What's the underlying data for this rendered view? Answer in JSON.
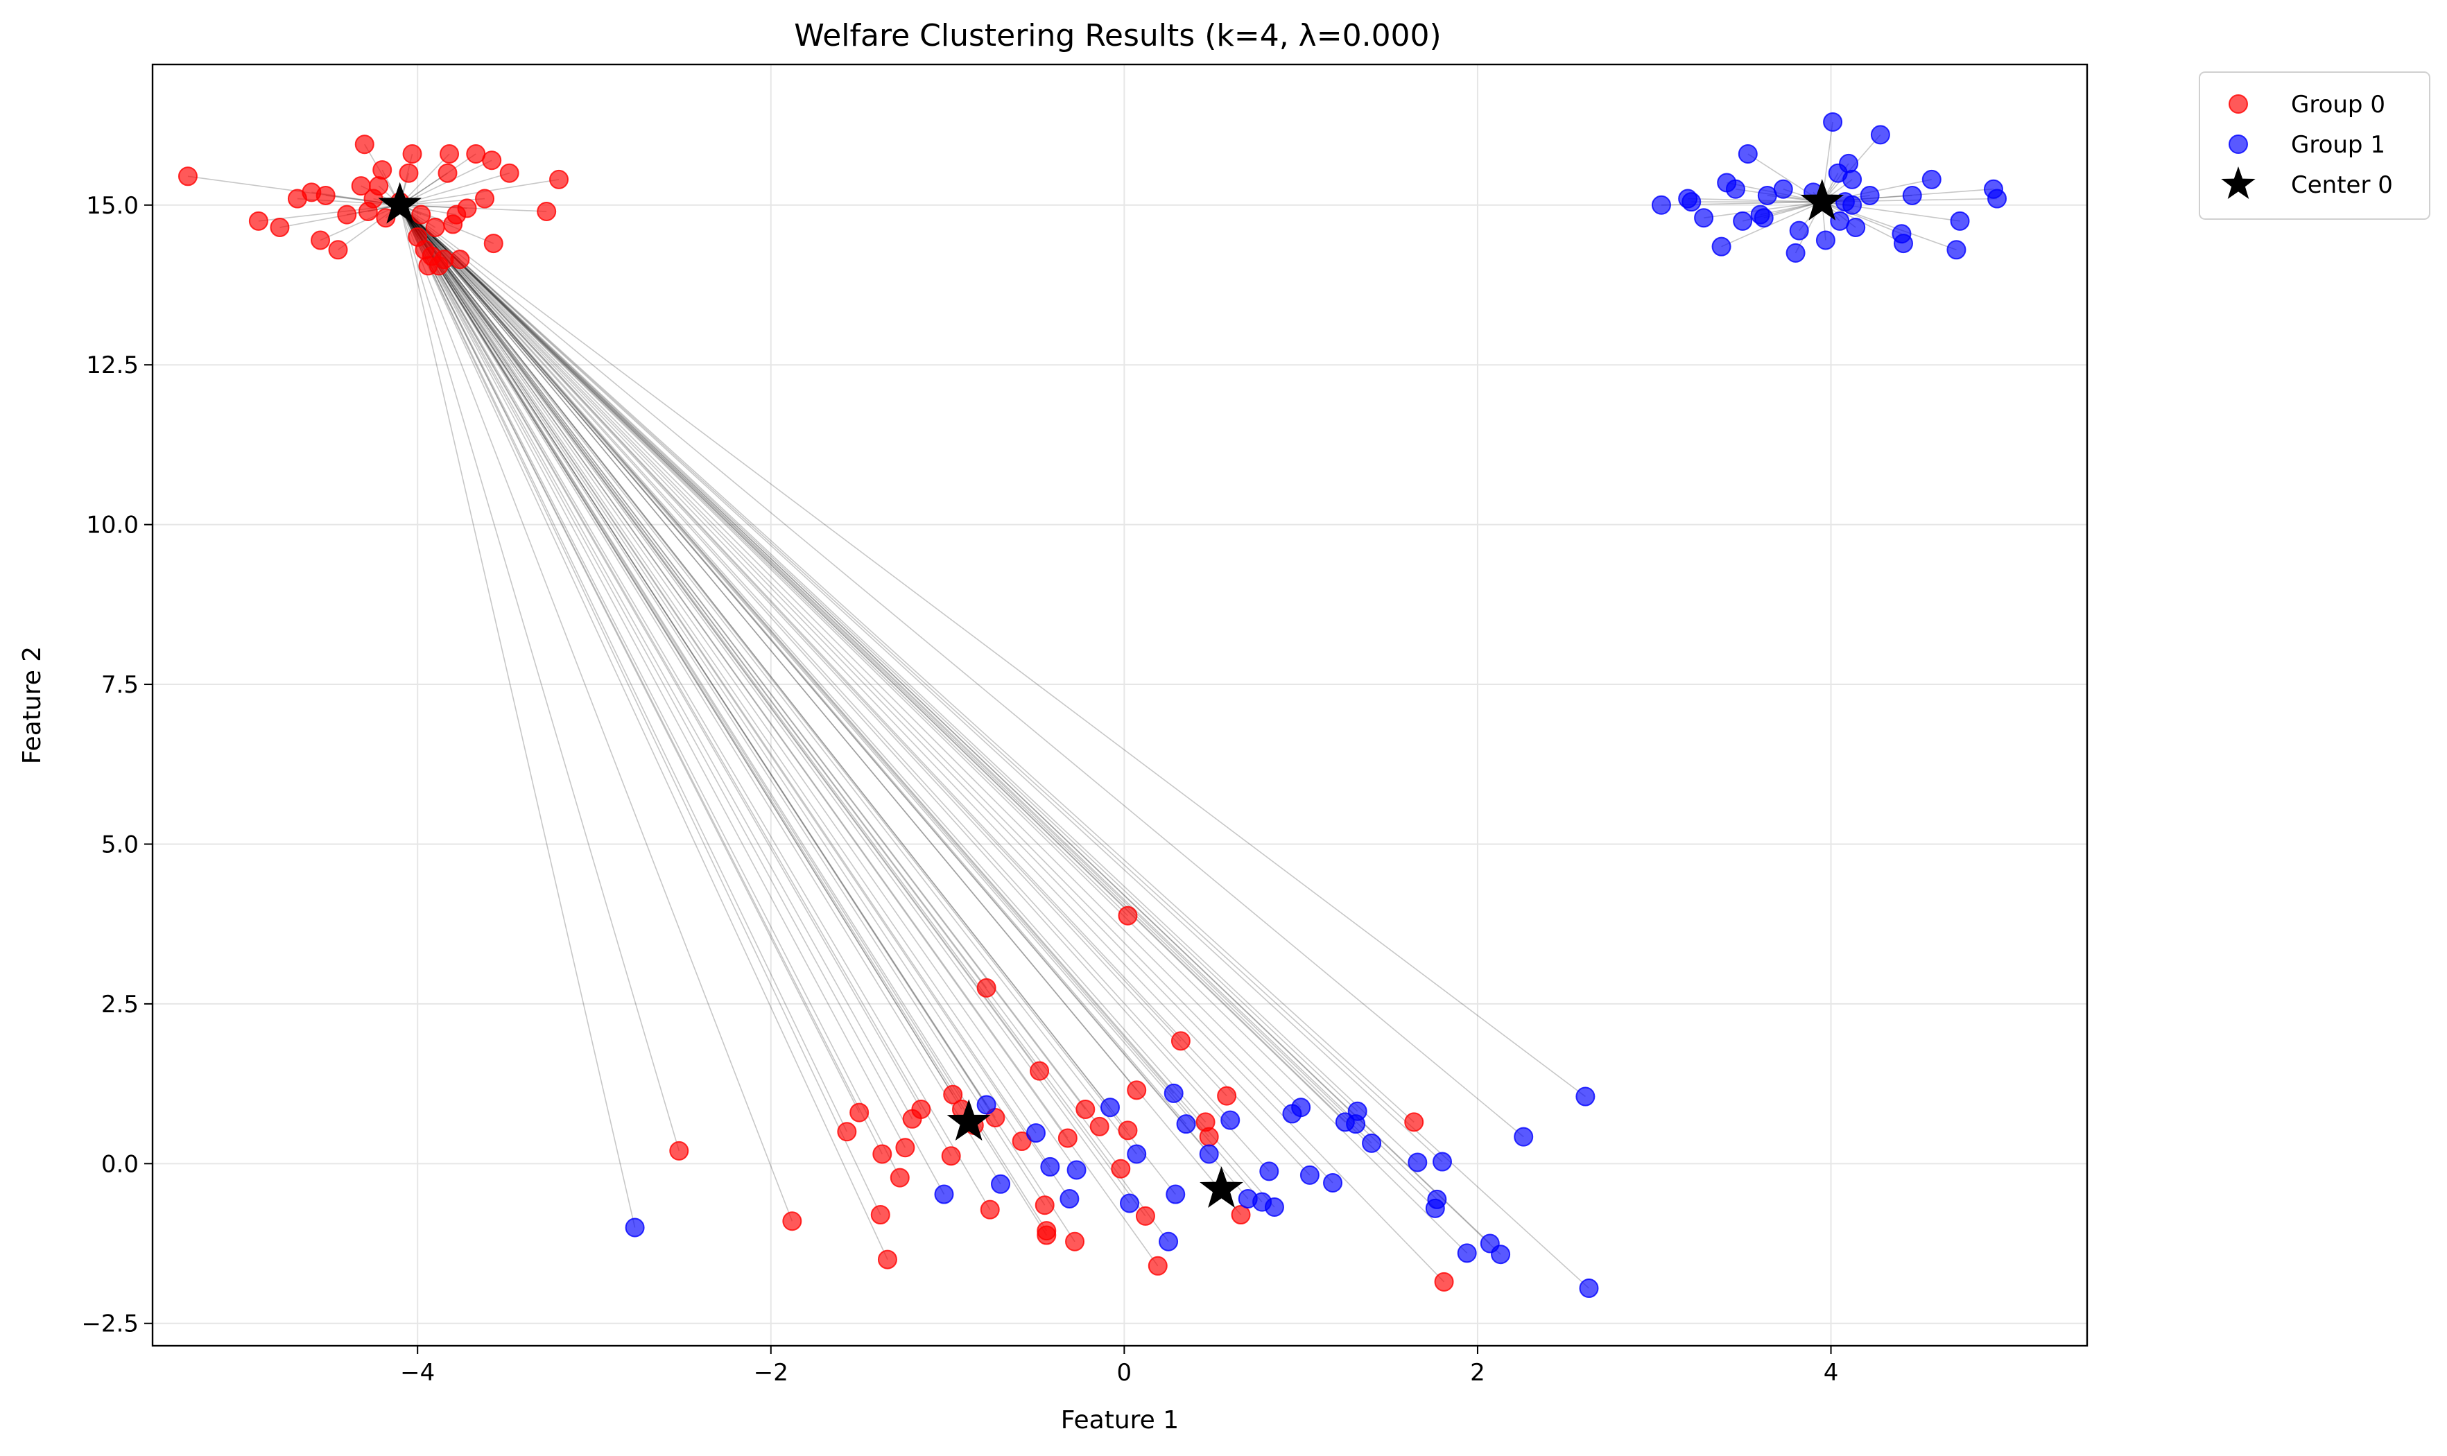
{
  "chart_data": {
    "type": "scatter",
    "title": "Welfare Clustering Results (k=4, λ=0.000)",
    "xlabel": "Feature 1",
    "ylabel": "Feature 2",
    "xlim": [
      -5.5,
      5.45
    ],
    "ylim": [
      -2.85,
      17.2
    ],
    "xticks": [
      -4,
      -2,
      0,
      2,
      4
    ],
    "xtick_labels": [
      "−4",
      "−2",
      "0",
      "2",
      "4"
    ],
    "yticks": [
      -2.5,
      0.0,
      2.5,
      5.0,
      7.5,
      10.0,
      12.5,
      15.0
    ],
    "ytick_labels": [
      "−2.5",
      "0.0",
      "2.5",
      "5.0",
      "7.5",
      "10.0",
      "12.5",
      "15.0"
    ],
    "grid": true,
    "legend_position": "outside-top-right",
    "legend": [
      {
        "label": "Group 0",
        "marker": "circle",
        "color": "#ff0000"
      },
      {
        "label": "Group 1",
        "marker": "circle",
        "color": "#0000ff"
      },
      {
        "label": "Center 0",
        "marker": "star",
        "color": "#000000"
      }
    ],
    "centers": [
      {
        "x": -4.1,
        "y": 15.0
      },
      {
        "x": 3.95,
        "y": 15.05
      },
      {
        "x": -0.88,
        "y": 0.65
      },
      {
        "x": 0.55,
        "y": -0.4
      }
    ],
    "series": [
      {
        "name": "Group 0",
        "color": "#ff0000",
        "points": [
          [
            -5.3,
            15.45
          ],
          [
            -4.9,
            14.75
          ],
          [
            -4.78,
            14.65
          ],
          [
            -4.68,
            15.1
          ],
          [
            -4.6,
            15.2
          ],
          [
            -4.55,
            14.45
          ],
          [
            -4.52,
            15.15
          ],
          [
            -4.45,
            14.3
          ],
          [
            -4.4,
            14.85
          ],
          [
            -4.32,
            15.3
          ],
          [
            -4.3,
            15.95
          ],
          [
            -4.28,
            14.9
          ],
          [
            -4.25,
            15.1
          ],
          [
            -4.22,
            15.3
          ],
          [
            -4.2,
            15.55
          ],
          [
            -4.18,
            14.8
          ],
          [
            -4.1,
            15.05
          ],
          [
            -4.05,
            15.5
          ],
          [
            -4.03,
            15.8
          ],
          [
            -4.0,
            14.5
          ],
          [
            -3.98,
            14.85
          ],
          [
            -3.96,
            14.3
          ],
          [
            -3.94,
            14.05
          ],
          [
            -3.92,
            14.2
          ],
          [
            -3.9,
            14.65
          ],
          [
            -3.88,
            14.05
          ],
          [
            -3.85,
            14.15
          ],
          [
            -3.83,
            15.5
          ],
          [
            -3.82,
            15.8
          ],
          [
            -3.8,
            14.7
          ],
          [
            -3.78,
            14.85
          ],
          [
            -3.76,
            14.15
          ],
          [
            -3.72,
            14.95
          ],
          [
            -3.67,
            15.8
          ],
          [
            -3.62,
            15.1
          ],
          [
            -3.58,
            15.7
          ],
          [
            -3.57,
            14.4
          ],
          [
            -3.48,
            15.5
          ],
          [
            -3.27,
            14.9
          ],
          [
            -3.2,
            15.4
          ],
          [
            -2.52,
            0.2
          ],
          [
            -1.88,
            -0.9
          ],
          [
            -1.57,
            0.5
          ],
          [
            -1.5,
            0.8
          ],
          [
            -1.38,
            -0.8
          ],
          [
            -1.37,
            0.15
          ],
          [
            -1.34,
            -1.5
          ],
          [
            -1.27,
            -0.22
          ],
          [
            -1.24,
            0.25
          ],
          [
            -1.2,
            0.7
          ],
          [
            -1.15,
            0.85
          ],
          [
            -0.98,
            0.12
          ],
          [
            -0.97,
            1.08
          ],
          [
            -0.92,
            0.85
          ],
          [
            -0.85,
            0.6
          ],
          [
            -0.78,
            2.75
          ],
          [
            -0.76,
            -0.72
          ],
          [
            -0.73,
            0.72
          ],
          [
            -0.58,
            0.35
          ],
          [
            -0.48,
            1.45
          ],
          [
            -0.45,
            -0.65
          ],
          [
            -0.44,
            -1.05
          ],
          [
            -0.44,
            -1.12
          ],
          [
            -0.32,
            0.4
          ],
          [
            -0.28,
            -1.22
          ],
          [
            -0.22,
            0.85
          ],
          [
            -0.14,
            0.58
          ],
          [
            -0.02,
            -0.08
          ],
          [
            0.02,
            0.52
          ],
          [
            0.02,
            3.88
          ],
          [
            0.07,
            1.15
          ],
          [
            0.12,
            -0.82
          ],
          [
            0.19,
            -1.6
          ],
          [
            0.32,
            1.92
          ],
          [
            0.46,
            0.65
          ],
          [
            0.48,
            0.42
          ],
          [
            0.58,
            1.06
          ],
          [
            0.66,
            -0.8
          ],
          [
            1.64,
            0.65
          ],
          [
            1.81,
            -1.85
          ]
        ]
      },
      {
        "name": "Group 1",
        "color": "#0000ff",
        "points": [
          [
            -2.77,
            -1.0
          ],
          [
            -1.02,
            -0.48
          ],
          [
            -0.78,
            0.92
          ],
          [
            -0.7,
            -0.32
          ],
          [
            -0.5,
            0.48
          ],
          [
            -0.42,
            -0.05
          ],
          [
            -0.31,
            -0.55
          ],
          [
            -0.27,
            -0.1
          ],
          [
            -0.08,
            0.88
          ],
          [
            0.03,
            -0.62
          ],
          [
            0.07,
            0.15
          ],
          [
            0.25,
            -1.22
          ],
          [
            0.28,
            1.1
          ],
          [
            0.29,
            -0.48
          ],
          [
            0.35,
            0.62
          ],
          [
            0.48,
            0.15
          ],
          [
            0.6,
            0.68
          ],
          [
            0.7,
            -0.55
          ],
          [
            0.78,
            -0.6
          ],
          [
            0.82,
            -0.12
          ],
          [
            0.85,
            -0.68
          ],
          [
            0.95,
            0.78
          ],
          [
            1.0,
            0.88
          ],
          [
            1.05,
            -0.18
          ],
          [
            1.18,
            -0.3
          ],
          [
            1.25,
            0.65
          ],
          [
            1.31,
            0.62
          ],
          [
            1.32,
            0.82
          ],
          [
            1.4,
            0.32
          ],
          [
            1.66,
            0.02
          ],
          [
            1.76,
            -0.7
          ],
          [
            1.77,
            -0.56
          ],
          [
            1.8,
            0.03
          ],
          [
            1.94,
            -1.4
          ],
          [
            2.07,
            -1.25
          ],
          [
            2.13,
            -1.42
          ],
          [
            2.26,
            0.42
          ],
          [
            2.61,
            1.05
          ],
          [
            2.63,
            -1.95
          ],
          [
            3.04,
            15.0
          ],
          [
            3.19,
            15.1
          ],
          [
            3.21,
            15.05
          ],
          [
            3.28,
            14.8
          ],
          [
            3.38,
            14.35
          ],
          [
            3.41,
            15.35
          ],
          [
            3.46,
            15.25
          ],
          [
            3.5,
            14.75
          ],
          [
            3.53,
            15.8
          ],
          [
            3.6,
            14.85
          ],
          [
            3.62,
            14.8
          ],
          [
            3.64,
            15.15
          ],
          [
            3.73,
            15.25
          ],
          [
            3.8,
            14.25
          ],
          [
            3.82,
            14.6
          ],
          [
            3.9,
            15.2
          ],
          [
            3.97,
            14.45
          ],
          [
            4.01,
            16.3
          ],
          [
            4.04,
            15.5
          ],
          [
            4.05,
            14.75
          ],
          [
            4.08,
            15.05
          ],
          [
            4.1,
            15.65
          ],
          [
            4.12,
            15.4
          ],
          [
            4.12,
            15.0
          ],
          [
            4.14,
            14.65
          ],
          [
            4.22,
            15.15
          ],
          [
            4.28,
            16.1
          ],
          [
            4.4,
            14.55
          ],
          [
            4.41,
            14.4
          ],
          [
            4.46,
            15.15
          ],
          [
            4.57,
            15.4
          ],
          [
            4.71,
            14.3
          ],
          [
            4.73,
            14.75
          ],
          [
            4.92,
            15.25
          ],
          [
            4.94,
            15.1
          ]
        ]
      }
    ]
  }
}
